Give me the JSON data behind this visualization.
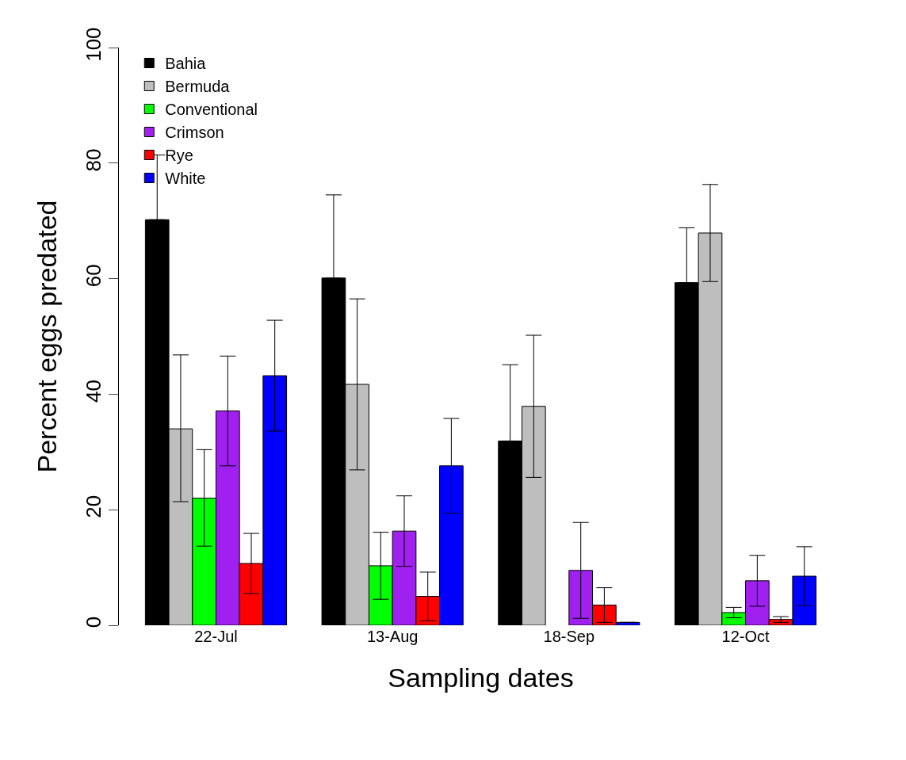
{
  "chart_data": {
    "type": "bar",
    "xlabel": "Sampling dates",
    "ylabel": "Percent eggs predated",
    "categories": [
      "22-Jul",
      "13-Aug",
      "18-Sep",
      "12-Oct"
    ],
    "series": [
      {
        "name": "Bahia",
        "color": "#000000",
        "values": [
          70.2,
          60.1,
          31.9,
          59.3
        ],
        "errors": [
          [
            70.2,
            81.4
          ],
          [
            60.1,
            74.5
          ],
          [
            31.9,
            45.1
          ],
          [
            59.3,
            68.8
          ]
        ]
      },
      {
        "name": "Bermuda",
        "color": "#bebebe",
        "values": [
          34.0,
          41.7,
          37.9,
          67.9
        ],
        "errors": [
          [
            21.4,
            46.8
          ],
          [
            26.9,
            56.5
          ],
          [
            25.6,
            50.2
          ],
          [
            59.5,
            76.3
          ]
        ]
      },
      {
        "name": "Conventional",
        "color": "#00ff00",
        "values": [
          22.0,
          10.3,
          null,
          2.2
        ],
        "errors": [
          [
            13.7,
            30.4
          ],
          [
            4.5,
            16.1
          ],
          null,
          [
            1.3,
            3.1
          ]
        ]
      },
      {
        "name": "Crimson",
        "color": "#a020f0",
        "values": [
          37.1,
          16.3,
          9.5,
          7.7
        ],
        "errors": [
          [
            27.6,
            46.6
          ],
          [
            10.2,
            22.4
          ],
          [
            1.2,
            17.8
          ],
          [
            3.3,
            12.1
          ]
        ]
      },
      {
        "name": "Rye",
        "color": "#ff0000",
        "values": [
          10.7,
          5.0,
          3.5,
          1.0
        ],
        "errors": [
          [
            5.5,
            15.9
          ],
          [
            0.8,
            9.2
          ],
          [
            0.5,
            6.5
          ],
          [
            0.5,
            1.5
          ]
        ]
      },
      {
        "name": "White",
        "color": "#0000ff",
        "values": [
          43.2,
          27.6,
          0.5,
          8.5
        ],
        "errors": [
          [
            33.6,
            52.8
          ],
          [
            19.4,
            35.8
          ],
          null,
          [
            3.4,
            13.6
          ]
        ]
      }
    ],
    "ylim": [
      0,
      100
    ],
    "yticks": [
      0,
      20,
      40,
      60,
      80,
      100
    ],
    "legend": "top left"
  }
}
